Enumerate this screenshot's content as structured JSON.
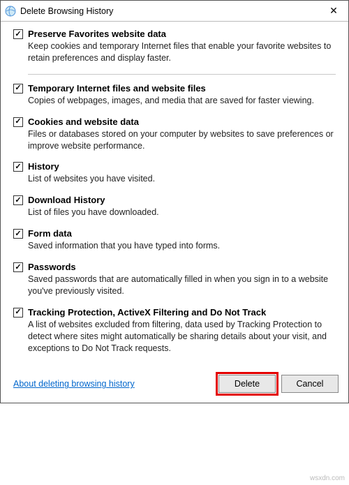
{
  "window": {
    "title": "Delete Browsing History",
    "close_glyph": "✕"
  },
  "options": [
    {
      "key": "preserve-favorites",
      "checked": true,
      "label": "Preserve Favorites website data",
      "desc": "Keep cookies and temporary Internet files that enable your favorite websites to retain preferences and display faster.",
      "divider_after": true
    },
    {
      "key": "temp-files",
      "checked": true,
      "label": "Temporary Internet files and website files",
      "desc": "Copies of webpages, images, and media that are saved for faster viewing."
    },
    {
      "key": "cookies",
      "checked": true,
      "label": "Cookies and website data",
      "desc": "Files or databases stored on your computer by websites to save preferences or improve website performance."
    },
    {
      "key": "history",
      "checked": true,
      "label": "History",
      "desc": "List of websites you have visited."
    },
    {
      "key": "download-history",
      "checked": true,
      "label": "Download History",
      "desc": "List of files you have downloaded."
    },
    {
      "key": "form-data",
      "checked": true,
      "label": "Form data",
      "desc": "Saved information that you have typed into forms."
    },
    {
      "key": "passwords",
      "checked": true,
      "label": "Passwords",
      "desc": "Saved passwords that are automatically filled in when you sign in to a website you've previously visited."
    },
    {
      "key": "tracking-protection",
      "checked": true,
      "label": "Tracking Protection, ActiveX Filtering and Do Not Track",
      "desc": "A list of websites excluded from filtering, data used by Tracking Protection to detect where sites might automatically be sharing details about your visit, and exceptions to Do Not Track requests."
    }
  ],
  "footer": {
    "about_link": "About deleting browsing history",
    "delete_label": "Delete",
    "cancel_label": "Cancel"
  },
  "colors": {
    "link": "#0066cc",
    "highlight": "#e30000",
    "button_bg": "#e8e8e8",
    "divider": "#c8c8c8"
  },
  "watermark": "wsxdn.com"
}
